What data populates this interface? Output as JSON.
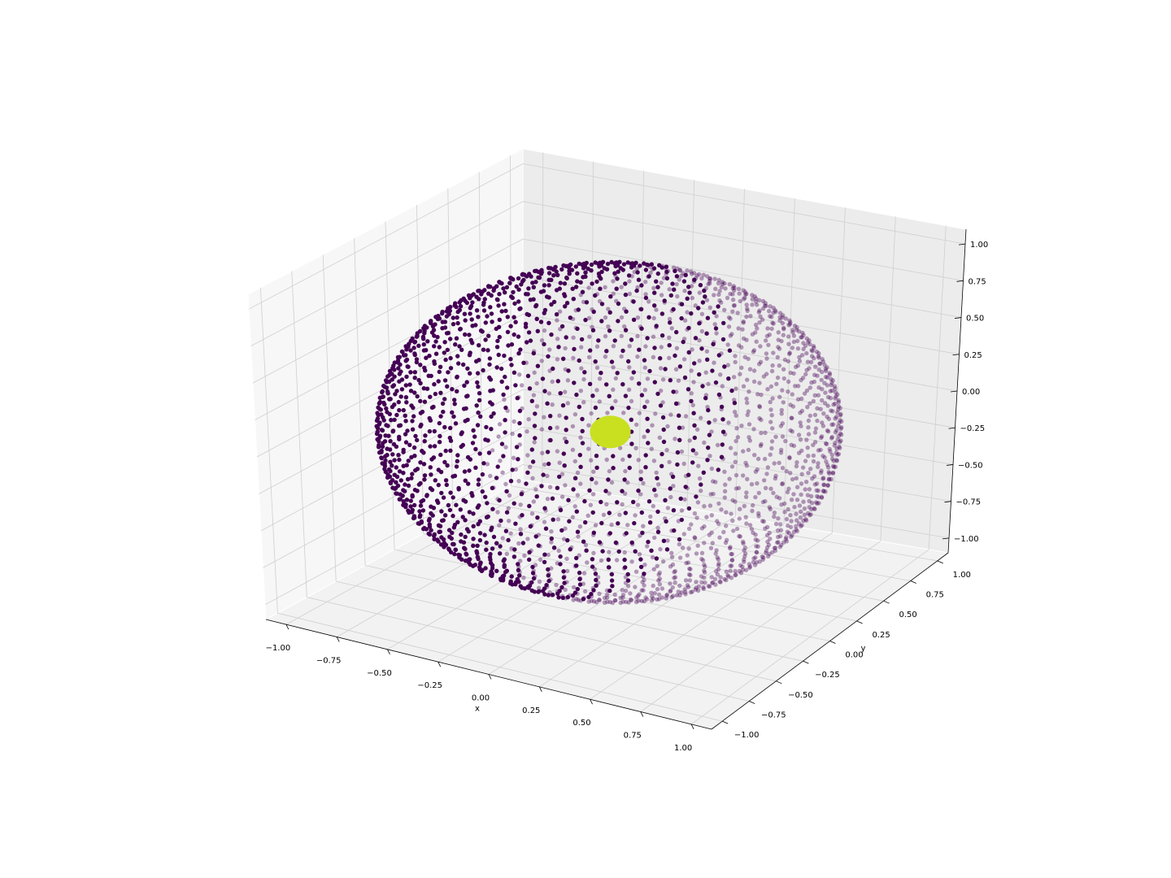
{
  "chart_data": {
    "type": "scatter3d",
    "title": "",
    "xlabel": "x",
    "ylabel": "y",
    "zlabel": "",
    "xlim": [
      -1.1,
      1.1
    ],
    "ylim": [
      -1.1,
      1.1
    ],
    "zlim": [
      -1.1,
      1.1
    ],
    "xticks": [
      "−1.00",
      "−0.75",
      "−0.50",
      "−0.25",
      "0.00",
      "0.25",
      "0.50",
      "0.75",
      "1.00"
    ],
    "yticks": [
      "−1.00",
      "−0.75",
      "−0.50",
      "−0.25",
      "0.00",
      "0.25",
      "0.50",
      "0.75",
      "1.00"
    ],
    "zticks": [
      "−1.00",
      "−0.75",
      "−0.50",
      "−0.25",
      "0.00",
      "0.25",
      "0.50",
      "0.75",
      "1.00"
    ],
    "tick_values": [
      -1,
      -0.75,
      -0.5,
      -0.25,
      0,
      0.25,
      0.5,
      0.75,
      1
    ],
    "grid": true,
    "sphere": {
      "shape": "unit sphere",
      "radius": 1.0,
      "latitude_rings": 45,
      "point_color": "#440154",
      "point_count_approx": 2000
    },
    "center_point": {
      "x": 0,
      "y": 0,
      "z": 0,
      "color": "#c8e020"
    }
  }
}
